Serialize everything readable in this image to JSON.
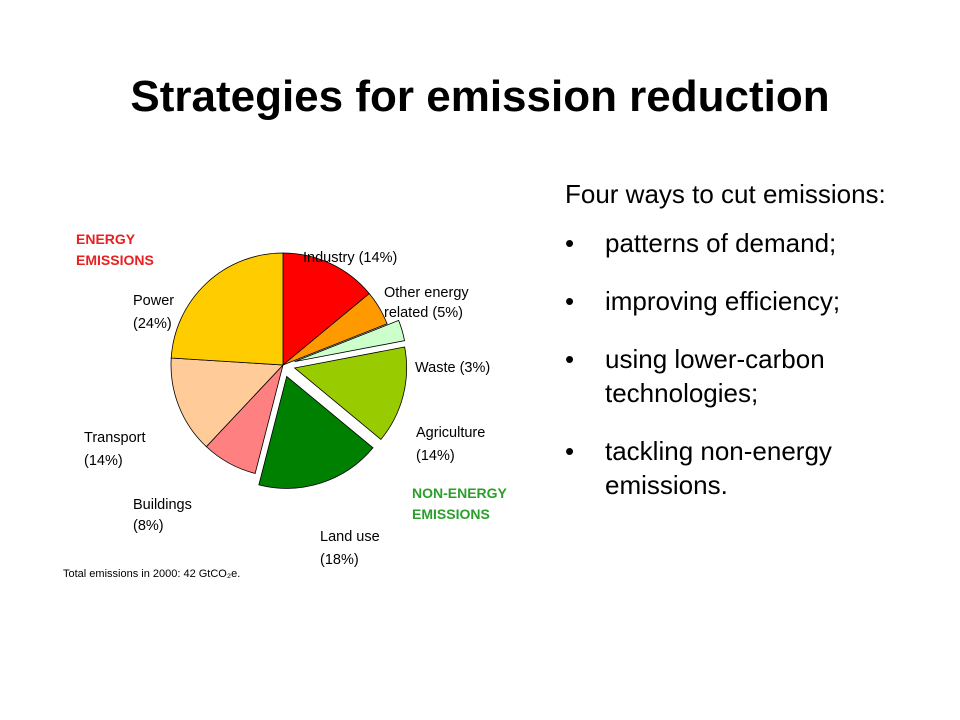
{
  "slide": {
    "title": "Strategies for emission reduction",
    "intro": "Four ways to cut emissions:",
    "bullets": [
      "patterns of demand;",
      "improving efficiency;",
      "using lower-carbon technologies;",
      "tackling non-energy emissions."
    ],
    "bullet_symbol": "•"
  },
  "chart_data": {
    "type": "pie",
    "title": "",
    "groups": [
      {
        "name_line1": "ENERGY",
        "name_line2": "EMISSIONS",
        "color": "#e8201f"
      },
      {
        "name_line1": "NON-ENERGY",
        "name_line2": "EMISSIONS",
        "color": "#2aa02a"
      }
    ],
    "slices": [
      {
        "label": "Industry (14%)",
        "value": 14,
        "color": "#ff0000",
        "group": 0
      },
      {
        "label": "Other energy related (5%)",
        "value": 5,
        "color": "#ff9900",
        "group": 0
      },
      {
        "label": "Waste (3%)",
        "value": 3,
        "color": "#ccffcc",
        "group": 1
      },
      {
        "label": "Agriculture (14%)",
        "value": 14,
        "color": "#99cc00",
        "group": 1
      },
      {
        "label": "Land use (18%)",
        "value": 18,
        "color": "#008000",
        "group": 1
      },
      {
        "label": "Buildings (8%)",
        "value": 8,
        "color": "#ff8080",
        "group": 0
      },
      {
        "label": "Transport (14%)",
        "value": 14,
        "color": "#ffcc99",
        "group": 0
      },
      {
        "label": "Power (24%)",
        "value": 24,
        "color": "#ffcc00",
        "group": 0
      }
    ],
    "footnote": "Total emissions in 2000: 42 GtCO₂e."
  }
}
